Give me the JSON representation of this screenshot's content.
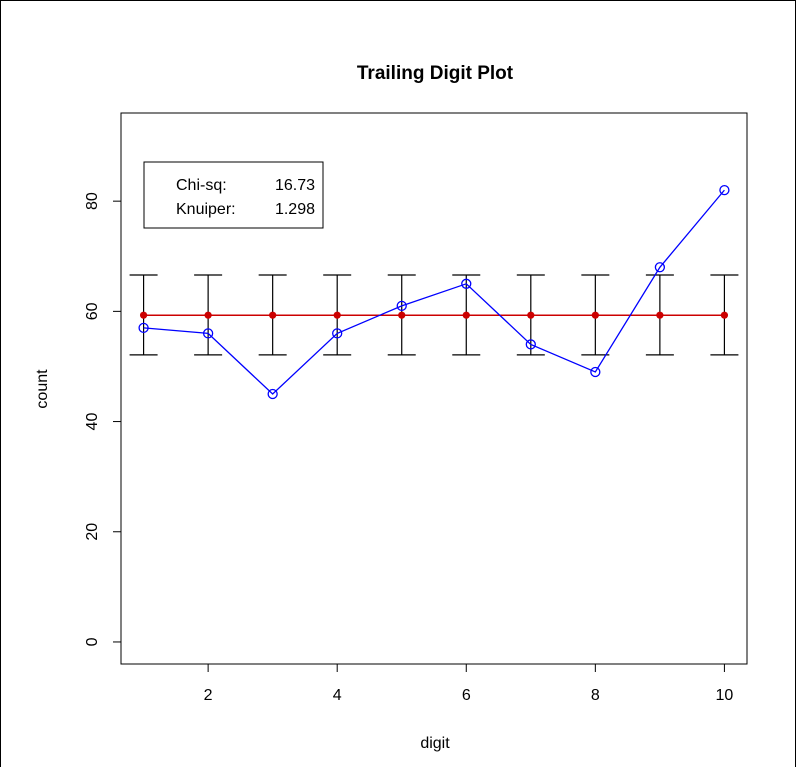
{
  "chart_data": {
    "type": "line",
    "title": "Trailing Digit Plot",
    "xlabel": "digit",
    "ylabel": "count",
    "xlim": [
      0.65,
      10.35
    ],
    "ylim": [
      -4,
      96
    ],
    "x_ticks": [
      2,
      4,
      6,
      8,
      10
    ],
    "y_ticks": [
      0,
      20,
      40,
      60,
      80
    ],
    "grid": false,
    "x": [
      1,
      2,
      3,
      4,
      5,
      6,
      7,
      8,
      9,
      10
    ],
    "observed": {
      "color": "#0000ff",
      "values": [
        57,
        56,
        45,
        56,
        61,
        65,
        54,
        49,
        68,
        82
      ]
    },
    "expected": {
      "color": "#cc0000",
      "value": 59.3,
      "error_bar": [
        52.1,
        66.6
      ]
    },
    "legend": {
      "placement": "top-left",
      "rows": [
        {
          "label": "Chi-sq:",
          "value": "16.73"
        },
        {
          "label": "Knuiper:",
          "value": "1.298"
        }
      ]
    }
  }
}
